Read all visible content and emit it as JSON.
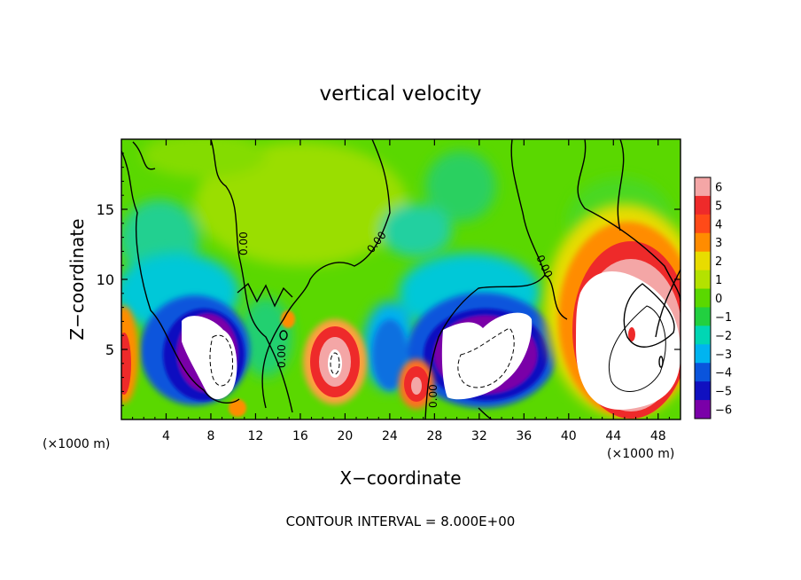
{
  "chart_data": {
    "type": "heatmap",
    "title": "vertical velocity",
    "xlabel": "X−coordinate",
    "ylabel": "Z−coordinate",
    "x_unit_left": "(×1000 m)",
    "x_unit_right": "(×1000 m)",
    "footer": "CONTOUR INTERVAL = 8.000E+00",
    "xlim": [
      0,
      50
    ],
    "ylim": [
      0,
      20
    ],
    "x_ticks": [
      4,
      8,
      12,
      16,
      20,
      24,
      28,
      32,
      36,
      40,
      44,
      48
    ],
    "y_ticks": [
      5,
      10,
      15
    ],
    "colorbar": {
      "ticks": [
        6,
        5,
        4,
        3,
        2,
        1,
        0,
        -1,
        -2,
        -3,
        -4,
        -5,
        -6
      ],
      "colors": [
        "#f4a6a6",
        "#ee2a2a",
        "#ff4a18",
        "#ff8c00",
        "#e8dc00",
        "#b4e200",
        "#5ad800",
        "#22d040",
        "#00d6b4",
        "#00b4f0",
        "#0a54dc",
        "#1010c0",
        "#7a00a8"
      ]
    },
    "contour_labels": [
      "0.00",
      "0.00",
      "0.00",
      "0.00",
      "0.00"
    ],
    "features": [
      {
        "kind": "updraft",
        "x": 0.5,
        "z": 5,
        "peak": 5
      },
      {
        "kind": "downdraft",
        "x": 8.5,
        "z": 6,
        "peak": -8
      },
      {
        "kind": "updraft",
        "x": 19.0,
        "z": 5,
        "peak": 6
      },
      {
        "kind": "updraft",
        "x": 26.5,
        "z": 3,
        "peak": 5
      },
      {
        "kind": "downdraft",
        "x": 33.0,
        "z": 5,
        "peak": -8
      },
      {
        "kind": "updraft",
        "x": 45.5,
        "z": 7,
        "peak": 9
      }
    ]
  }
}
